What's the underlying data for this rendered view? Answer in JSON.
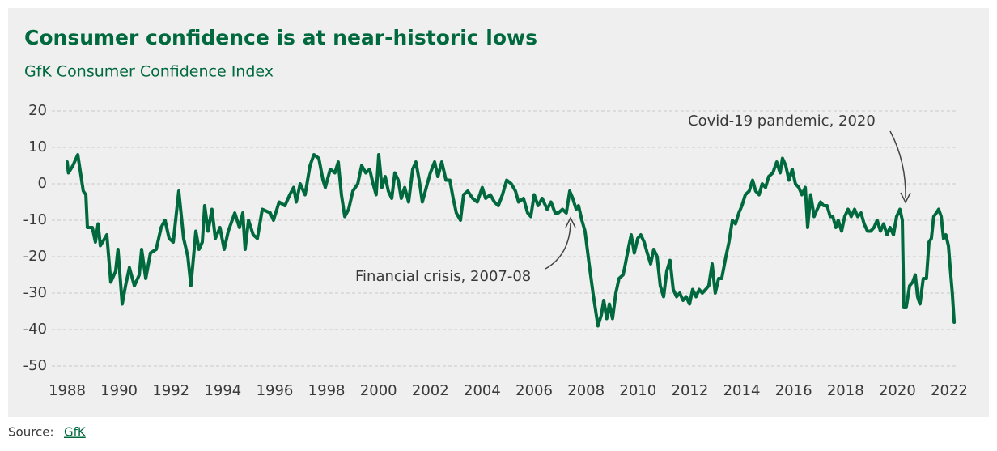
{
  "chart_data": {
    "type": "line",
    "title": "Consumer confidence is at near-historic lows",
    "subtitle": "GfK Consumer Confidence Index",
    "annotations": [
      "Covid-19 pandemic, 2020",
      "Financial crisis, 2007-08"
    ],
    "source": {
      "label": "Source:",
      "link": "GfK"
    },
    "xlim": [
      1988,
      2022
    ],
    "xticks": [
      1988,
      1990,
      1992,
      1994,
      1996,
      1998,
      2000,
      2002,
      2004,
      2006,
      2008,
      2010,
      2012,
      2014,
      2016,
      2018,
      2020,
      2022
    ],
    "ylim": [
      -50,
      20
    ],
    "yticks": [
      -50,
      -40,
      -30,
      -20,
      -10,
      0,
      10,
      20
    ],
    "grid": true,
    "x": [
      1988.0,
      1988.05,
      1988.22,
      1988.41,
      1988.62,
      1988.72,
      1988.78,
      1988.97,
      1989.09,
      1989.19,
      1989.28,
      1989.53,
      1989.68,
      1989.87,
      1989.96,
      1990.12,
      1990.25,
      1990.4,
      1990.59,
      1990.78,
      1990.87,
      1991.03,
      1991.21,
      1991.43,
      1991.62,
      1991.77,
      1991.93,
      1992.09,
      1992.3,
      1992.49,
      1992.65,
      1992.77,
      1992.96,
      1993.08,
      1993.21,
      1993.3,
      1993.43,
      1993.58,
      1993.71,
      1993.89,
      1994.05,
      1994.21,
      1994.46,
      1994.64,
      1994.77,
      1994.86,
      1994.99,
      1995.17,
      1995.33,
      1995.52,
      1995.83,
      1995.95,
      1996.17,
      1996.39,
      1996.58,
      1996.73,
      1996.83,
      1996.98,
      1997.17,
      1997.36,
      1997.51,
      1997.7,
      1997.86,
      1997.95,
      1998.14,
      1998.32,
      1998.45,
      1998.57,
      1998.7,
      1998.85,
      1999.01,
      1999.2,
      1999.35,
      1999.51,
      1999.66,
      1999.79,
      1999.91,
      2000.01,
      2000.13,
      2000.26,
      2000.38,
      2000.51,
      2000.63,
      2000.76,
      2000.88,
      2001.01,
      2001.16,
      2001.32,
      2001.44,
      2001.57,
      2001.69,
      2001.88,
      2002.0,
      2002.16,
      2002.29,
      2002.44,
      2002.6,
      2002.75,
      2002.88,
      2003.0,
      2003.16,
      2003.28,
      2003.44,
      2003.63,
      2003.81,
      2004.0,
      2004.13,
      2004.31,
      2004.47,
      2004.62,
      2004.78,
      2004.94,
      2005.12,
      2005.28,
      2005.4,
      2005.59,
      2005.75,
      2005.87,
      2006.0,
      2006.15,
      2006.31,
      2006.5,
      2006.65,
      2006.81,
      2006.93,
      2007.09,
      2007.24,
      2007.37,
      2007.49,
      2007.62,
      2007.71,
      2007.84,
      2007.96,
      2008.12,
      2008.27,
      2008.46,
      2008.59,
      2008.68,
      2008.8,
      2008.9,
      2009.02,
      2009.15,
      2009.27,
      2009.43,
      2009.49,
      2009.65,
      2009.74,
      2009.86,
      2009.99,
      2010.11,
      2010.24,
      2010.36,
      2010.49,
      2010.61,
      2010.74,
      2010.86,
      2010.99,
      2011.11,
      2011.24,
      2011.36,
      2011.49,
      2011.61,
      2011.74,
      2011.86,
      2011.99,
      2012.11,
      2012.24,
      2012.36,
      2012.48,
      2012.61,
      2012.73,
      2012.86,
      2012.98,
      2013.11,
      2013.23,
      2013.39,
      2013.51,
      2013.64,
      2013.76,
      2013.89,
      2014.01,
      2014.14,
      2014.29,
      2014.42,
      2014.54,
      2014.67,
      2014.79,
      2014.92,
      2015.04,
      2015.2,
      2015.35,
      2015.48,
      2015.57,
      2015.7,
      2015.82,
      2015.95,
      2016.07,
      2016.2,
      2016.32,
      2016.45,
      2016.54,
      2016.66,
      2016.79,
      2016.91,
      2017.04,
      2017.16,
      2017.29,
      2017.41,
      2017.51,
      2017.63,
      2017.72,
      2017.85,
      2017.97,
      2018.1,
      2018.22,
      2018.35,
      2018.47,
      2018.6,
      2018.72,
      2018.85,
      2018.97,
      2019.1,
      2019.22,
      2019.35,
      2019.47,
      2019.6,
      2019.72,
      2019.85,
      2019.97,
      2020.1,
      2020.19,
      2020.25,
      2020.34,
      2020.47,
      2020.59,
      2020.69,
      2020.78,
      2020.87,
      2021.0,
      2021.12,
      2021.22,
      2021.31,
      2021.4,
      2021.5,
      2021.59,
      2021.69,
      2021.78,
      2021.87,
      2021.97,
      2022.06,
      2022.12,
      2022.19
    ],
    "series": [
      {
        "name": "GfK Consumer Confidence Index",
        "color": "#00693e",
        "values": [
          6,
          3,
          5,
          8,
          -2,
          -3,
          -12,
          -12,
          -16,
          -11,
          -17,
          -14,
          -27,
          -24,
          -18,
          -33,
          -28,
          -23,
          -28,
          -25,
          -18,
          -26,
          -19,
          -18,
          -12,
          -10,
          -15,
          -16,
          -2,
          -15,
          -20,
          -28,
          -13,
          -18,
          -16,
          -6,
          -13,
          -7,
          -15,
          -12,
          -18,
          -13,
          -8,
          -12,
          -8,
          -18,
          -10,
          -14,
          -15,
          -7,
          -8,
          -10,
          -5,
          -6,
          -3,
          -1,
          -5,
          0,
          -3,
          5,
          8,
          7,
          1,
          -1,
          4,
          3,
          6,
          -3,
          -9,
          -7,
          -2,
          0,
          5,
          3,
          4,
          0,
          -3,
          8,
          -1,
          2,
          -2,
          -4,
          3,
          1,
          -4,
          -1,
          -5,
          4,
          6,
          1,
          -5,
          0,
          3,
          6,
          2,
          6,
          1,
          1,
          -4,
          -8,
          -10,
          -3,
          -2,
          -4,
          -5,
          -1,
          -4,
          -3,
          -5,
          -6,
          -3,
          1,
          0,
          -2,
          -5,
          -4,
          -8,
          -9,
          -3,
          -6,
          -4,
          -7,
          -5,
          -8,
          -8,
          -7,
          -8,
          -2,
          -4,
          -7,
          -6,
          -10,
          -13,
          -22,
          -30,
          -39,
          -36,
          -32,
          -37,
          -33,
          -37,
          -30,
          -26,
          -25,
          -23,
          -17,
          -14,
          -19,
          -15,
          -14,
          -16,
          -19,
          -22,
          -18,
          -20,
          -28,
          -31,
          -24,
          -21,
          -29,
          -31,
          -30,
          -32,
          -31,
          -33,
          -29,
          -31,
          -29,
          -30,
          -29,
          -28,
          -22,
          -30,
          -26,
          -26,
          -20,
          -16,
          -10,
          -11,
          -8,
          -6,
          -3,
          -2,
          1,
          -2,
          -3,
          0,
          -1,
          2,
          3,
          6,
          3,
          7,
          5,
          1,
          4,
          0,
          -1,
          -3,
          -1,
          -12,
          -3,
          -9,
          -7,
          -5,
          -6,
          -6,
          -9,
          -9,
          -12,
          -10,
          -13,
          -9,
          -7,
          -9,
          -7,
          -9,
          -8,
          -11,
          -13,
          -13,
          -12,
          -10,
          -13,
          -11,
          -14,
          -12,
          -14,
          -9,
          -7,
          -10,
          -34,
          -34,
          -28,
          -27,
          -25,
          -31,
          -33,
          -26,
          -26,
          -16,
          -15,
          -9,
          -8,
          -7,
          -9,
          -15,
          -14,
          -17,
          -25,
          -30,
          -38
        ]
      }
    ]
  }
}
